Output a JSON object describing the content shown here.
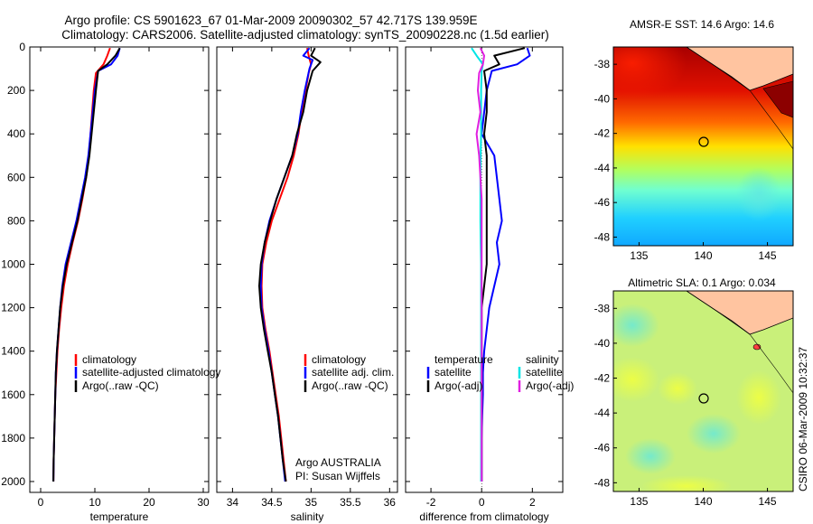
{
  "title": {
    "line1": "Argo profile: CS 5901623_67 01-Mar-2009 20090302_57 42.717S 139.959E",
    "line2": "Climatology: CARS2006. Satellite-adjusted climatology: synTS_20090228.nc (1.5d earlier)"
  },
  "side_label": "CSIRO 06-Mar-2009 10:32:37",
  "colors": {
    "climatology": "#ff0000",
    "satellite": "#0000ff",
    "argo": "#000000",
    "salinity_satellite": "#00e5e5",
    "salinity_argo": "#e020e0"
  },
  "chart_data": [
    {
      "type": "line",
      "name": "temperature-profile",
      "xlabel": "temperature",
      "ylabel": "",
      "xlim": [
        -2,
        31
      ],
      "ylim": [
        2050,
        0
      ],
      "xticks": [
        0,
        10,
        20,
        30
      ],
      "yticks": [
        0,
        200,
        400,
        600,
        800,
        1000,
        1200,
        1400,
        1600,
        1800,
        2000
      ],
      "legend": [
        "climatology",
        "satellite-adjusted climatology",
        "Argo(..raw -QC)"
      ],
      "legend_placement": "bottom-center",
      "series": [
        {
          "name": "climatology",
          "color_key": "climatology",
          "points": [
            [
              12.8,
              5
            ],
            [
              12.3,
              40
            ],
            [
              11.6,
              80
            ],
            [
              10.2,
              120
            ],
            [
              9.8,
              200
            ],
            [
              9.5,
              300
            ],
            [
              9.2,
              400
            ],
            [
              8.9,
              500
            ],
            [
              8.4,
              600
            ],
            [
              7.7,
              700
            ],
            [
              6.9,
              800
            ],
            [
              5.9,
              900
            ],
            [
              5.0,
              1000
            ],
            [
              4.3,
              1100
            ],
            [
              3.8,
              1200
            ],
            [
              3.4,
              1300
            ],
            [
              3.1,
              1400
            ],
            [
              2.9,
              1500
            ],
            [
              2.7,
              1600
            ],
            [
              2.6,
              1700
            ],
            [
              2.5,
              1800
            ],
            [
              2.4,
              1900
            ],
            [
              2.35,
              2000
            ]
          ]
        },
        {
          "name": "satellite-adjusted climatology",
          "color_key": "satellite",
          "points": [
            [
              14.6,
              5
            ],
            [
              14.2,
              40
            ],
            [
              13.0,
              80
            ],
            [
              10.6,
              110
            ],
            [
              10.0,
              200
            ],
            [
              9.6,
              300
            ],
            [
              9.2,
              400
            ],
            [
              8.8,
              500
            ],
            [
              8.2,
              600
            ],
            [
              7.4,
              700
            ],
            [
              6.6,
              800
            ],
            [
              5.6,
              900
            ],
            [
              4.6,
              1000
            ],
            [
              4.0,
              1100
            ],
            [
              3.6,
              1200
            ],
            [
              3.3,
              1300
            ],
            [
              3.0,
              1400
            ],
            [
              2.8,
              1500
            ],
            [
              2.7,
              1600
            ],
            [
              2.6,
              1700
            ],
            [
              2.5,
              1800
            ],
            [
              2.4,
              1900
            ],
            [
              2.35,
              2000
            ]
          ]
        },
        {
          "name": "Argo(..raw -QC)",
          "color_key": "argo",
          "points": [
            [
              14.6,
              5
            ],
            [
              13.8,
              40
            ],
            [
              12.3,
              80
            ],
            [
              10.6,
              110
            ],
            [
              10.2,
              200
            ],
            [
              9.8,
              300
            ],
            [
              9.4,
              400
            ],
            [
              9.0,
              500
            ],
            [
              8.4,
              600
            ],
            [
              7.6,
              700
            ],
            [
              6.8,
              800
            ],
            [
              5.8,
              900
            ],
            [
              4.8,
              1000
            ],
            [
              4.1,
              1100
            ],
            [
              3.6,
              1200
            ],
            [
              3.3,
              1300
            ],
            [
              3.0,
              1400
            ],
            [
              2.8,
              1500
            ],
            [
              2.7,
              1600
            ],
            [
              2.6,
              1700
            ],
            [
              2.5,
              1800
            ],
            [
              2.4,
              1900
            ],
            [
              2.35,
              2000
            ]
          ]
        }
      ]
    },
    {
      "type": "line",
      "name": "salinity-profile",
      "xlabel": "salinity",
      "ylabel": "",
      "xlim": [
        33.8,
        36.1
      ],
      "ylim": [
        2050,
        0
      ],
      "xticks": [
        34,
        34.5,
        35,
        35.5,
        36
      ],
      "legend": [
        "climatology",
        "satellite adj. clim.",
        "Argo(..raw -QC)"
      ],
      "legend_placement": "bottom-right",
      "annotation": [
        "Argo AUSTRALIA",
        "PI: Susan Wijffels"
      ],
      "series": [
        {
          "name": "climatology",
          "color_key": "climatology",
          "points": [
            [
              34.95,
              5
            ],
            [
              34.97,
              40
            ],
            [
              35.0,
              80
            ],
            [
              34.97,
              120
            ],
            [
              34.93,
              200
            ],
            [
              34.88,
              300
            ],
            [
              34.84,
              400
            ],
            [
              34.78,
              500
            ],
            [
              34.7,
              600
            ],
            [
              34.6,
              700
            ],
            [
              34.5,
              800
            ],
            [
              34.43,
              900
            ],
            [
              34.38,
              1000
            ],
            [
              34.37,
              1100
            ],
            [
              34.38,
              1200
            ],
            [
              34.42,
              1300
            ],
            [
              34.47,
              1400
            ],
            [
              34.51,
              1500
            ],
            [
              34.55,
              1600
            ],
            [
              34.59,
              1700
            ],
            [
              34.62,
              1800
            ],
            [
              34.65,
              1900
            ],
            [
              34.68,
              2000
            ]
          ]
        },
        {
          "name": "satellite adj. clim.",
          "color_key": "satellite",
          "points": [
            [
              34.98,
              5
            ],
            [
              34.9,
              40
            ],
            [
              35.02,
              60
            ],
            [
              34.98,
              100
            ],
            [
              34.92,
              200
            ],
            [
              34.87,
              300
            ],
            [
              34.83,
              400
            ],
            [
              34.76,
              500
            ],
            [
              34.66,
              600
            ],
            [
              34.56,
              700
            ],
            [
              34.47,
              800
            ],
            [
              34.41,
              900
            ],
            [
              34.37,
              1000
            ],
            [
              34.36,
              1100
            ],
            [
              34.37,
              1200
            ],
            [
              34.41,
              1300
            ],
            [
              34.46,
              1400
            ],
            [
              34.5,
              1500
            ],
            [
              34.54,
              1600
            ],
            [
              34.58,
              1700
            ],
            [
              34.61,
              1800
            ],
            [
              34.64,
              1900
            ],
            [
              34.67,
              2000
            ]
          ]
        },
        {
          "name": "Argo(..raw -QC)",
          "color_key": "argo",
          "points": [
            [
              35.05,
              5
            ],
            [
              35.0,
              40
            ],
            [
              35.12,
              70
            ],
            [
              35.02,
              110
            ],
            [
              34.95,
              200
            ],
            [
              34.9,
              300
            ],
            [
              34.82,
              400
            ],
            [
              34.76,
              500
            ],
            [
              34.66,
              600
            ],
            [
              34.56,
              700
            ],
            [
              34.48,
              800
            ],
            [
              34.41,
              900
            ],
            [
              34.36,
              1000
            ],
            [
              34.34,
              1100
            ],
            [
              34.36,
              1200
            ],
            [
              34.4,
              1300
            ],
            [
              34.45,
              1400
            ],
            [
              34.5,
              1500
            ],
            [
              34.54,
              1600
            ],
            [
              34.58,
              1700
            ],
            [
              34.61,
              1800
            ],
            [
              34.64,
              1900
            ],
            [
              34.68,
              2000
            ]
          ]
        }
      ]
    },
    {
      "type": "line",
      "name": "difference-profile",
      "xlabel": "difference from climatology",
      "ylabel": "",
      "xlim": [
        -3,
        3.2
      ],
      "ylim": [
        2050,
        0
      ],
      "xticks": [
        -2,
        0,
        2
      ],
      "legend_groups": [
        {
          "title": "temperature",
          "items": [
            "satellite",
            "Argo(-adj)"
          ]
        },
        {
          "title": "salinity",
          "items": [
            "satellite",
            "Argo(-adj)"
          ]
        }
      ],
      "legend_placement": "bottom-center",
      "series": [
        {
          "name": "temperature satellite",
          "color_key": "satellite",
          "points": [
            [
              1.8,
              5
            ],
            [
              1.9,
              40
            ],
            [
              1.4,
              80
            ],
            [
              0.4,
              110
            ],
            [
              0.2,
              200
            ],
            [
              0.1,
              300
            ],
            [
              0.0,
              400
            ],
            [
              0.5,
              500
            ],
            [
              0.6,
              600
            ],
            [
              0.7,
              700
            ],
            [
              0.8,
              800
            ],
            [
              0.6,
              900
            ],
            [
              0.7,
              1000
            ],
            [
              0.5,
              1100
            ],
            [
              0.3,
              1200
            ],
            [
              0.2,
              1300
            ],
            [
              0.1,
              1400
            ],
            [
              0.05,
              1500
            ],
            [
              0.05,
              1600
            ],
            [
              0.02,
              1700
            ],
            [
              0.0,
              1800
            ],
            [
              0.0,
              1900
            ],
            [
              0.0,
              2000
            ]
          ]
        },
        {
          "name": "temperature Argo(-adj)",
          "color_key": "argo",
          "points": [
            [
              1.7,
              5
            ],
            [
              0.5,
              40
            ],
            [
              0.7,
              80
            ],
            [
              0.1,
              110
            ],
            [
              0.2,
              200
            ],
            [
              0.2,
              300
            ],
            [
              0.1,
              400
            ],
            [
              0.2,
              500
            ],
            [
              0.2,
              600
            ],
            [
              0.2,
              700
            ],
            [
              0.2,
              800
            ],
            [
              0.2,
              900
            ],
            [
              0.2,
              1000
            ],
            [
              0.1,
              1100
            ],
            [
              0.0,
              1200
            ],
            [
              0.0,
              1300
            ],
            [
              0.0,
              1400
            ],
            [
              0.0,
              1500
            ],
            [
              0.0,
              1600
            ],
            [
              0.0,
              1700
            ],
            [
              0.0,
              1800
            ],
            [
              0.0,
              1900
            ],
            [
              0.0,
              2000
            ]
          ]
        },
        {
          "name": "salinity satellite",
          "color_key": "salinity_satellite",
          "points": [
            [
              -0.4,
              5
            ],
            [
              -0.2,
              40
            ],
            [
              0.05,
              80
            ],
            [
              0.0,
              110
            ],
            [
              -0.02,
              200
            ],
            [
              -0.02,
              300
            ],
            [
              -0.02,
              400
            ],
            [
              -0.04,
              500
            ],
            [
              -0.05,
              600
            ],
            [
              -0.05,
              700
            ],
            [
              -0.05,
              800
            ],
            [
              -0.04,
              900
            ],
            [
              -0.02,
              1000
            ],
            [
              -0.02,
              1100
            ],
            [
              -0.02,
              1200
            ],
            [
              -0.02,
              1300
            ],
            [
              -0.02,
              1400
            ],
            [
              -0.02,
              1500
            ],
            [
              -0.02,
              1600
            ],
            [
              -0.02,
              1700
            ],
            [
              -0.02,
              1800
            ],
            [
              -0.02,
              1900
            ],
            [
              -0.02,
              2000
            ]
          ]
        },
        {
          "name": "salinity Argo(-adj)",
          "color_key": "salinity_argo",
          "points": [
            [
              -0.05,
              5
            ],
            [
              0.1,
              40
            ],
            [
              0.05,
              80
            ],
            [
              -0.1,
              120
            ],
            [
              -0.15,
              200
            ],
            [
              -0.05,
              300
            ],
            [
              -0.2,
              400
            ],
            [
              -0.1,
              500
            ],
            [
              -0.05,
              600
            ],
            [
              0.0,
              700
            ],
            [
              0.0,
              800
            ],
            [
              0.0,
              900
            ],
            [
              0.0,
              1000
            ],
            [
              0.0,
              1100
            ],
            [
              0.0,
              1200
            ],
            [
              0.0,
              1300
            ],
            [
              0.0,
              1400
            ],
            [
              0.0,
              1500
            ],
            [
              0.0,
              1600
            ],
            [
              0.0,
              1700
            ],
            [
              0.0,
              1800
            ],
            [
              0.0,
              1900
            ],
            [
              0.0,
              2000
            ]
          ]
        }
      ]
    },
    {
      "type": "heatmap",
      "name": "sst-map",
      "title": "AMSR-E SST: 14.6 Argo: 14.6",
      "xlim": [
        133,
        147
      ],
      "ylim": [
        -48.5,
        -37
      ],
      "xticks": [
        135,
        140,
        145
      ],
      "yticks": [
        -38,
        -40,
        -42,
        -44,
        -46,
        -48
      ],
      "marker": [
        139.959,
        -42.717
      ]
    },
    {
      "type": "heatmap",
      "name": "sla-map",
      "title": "Altimetric SLA: 0.1 Argo: 0.034",
      "xlim": [
        133,
        147
      ],
      "ylim": [
        -48.5,
        -37
      ],
      "xticks": [
        135,
        140,
        145
      ],
      "yticks": [
        -38,
        -40,
        -42,
        -44,
        -46,
        -48
      ],
      "marker": [
        139.959,
        -42.717
      ]
    }
  ]
}
